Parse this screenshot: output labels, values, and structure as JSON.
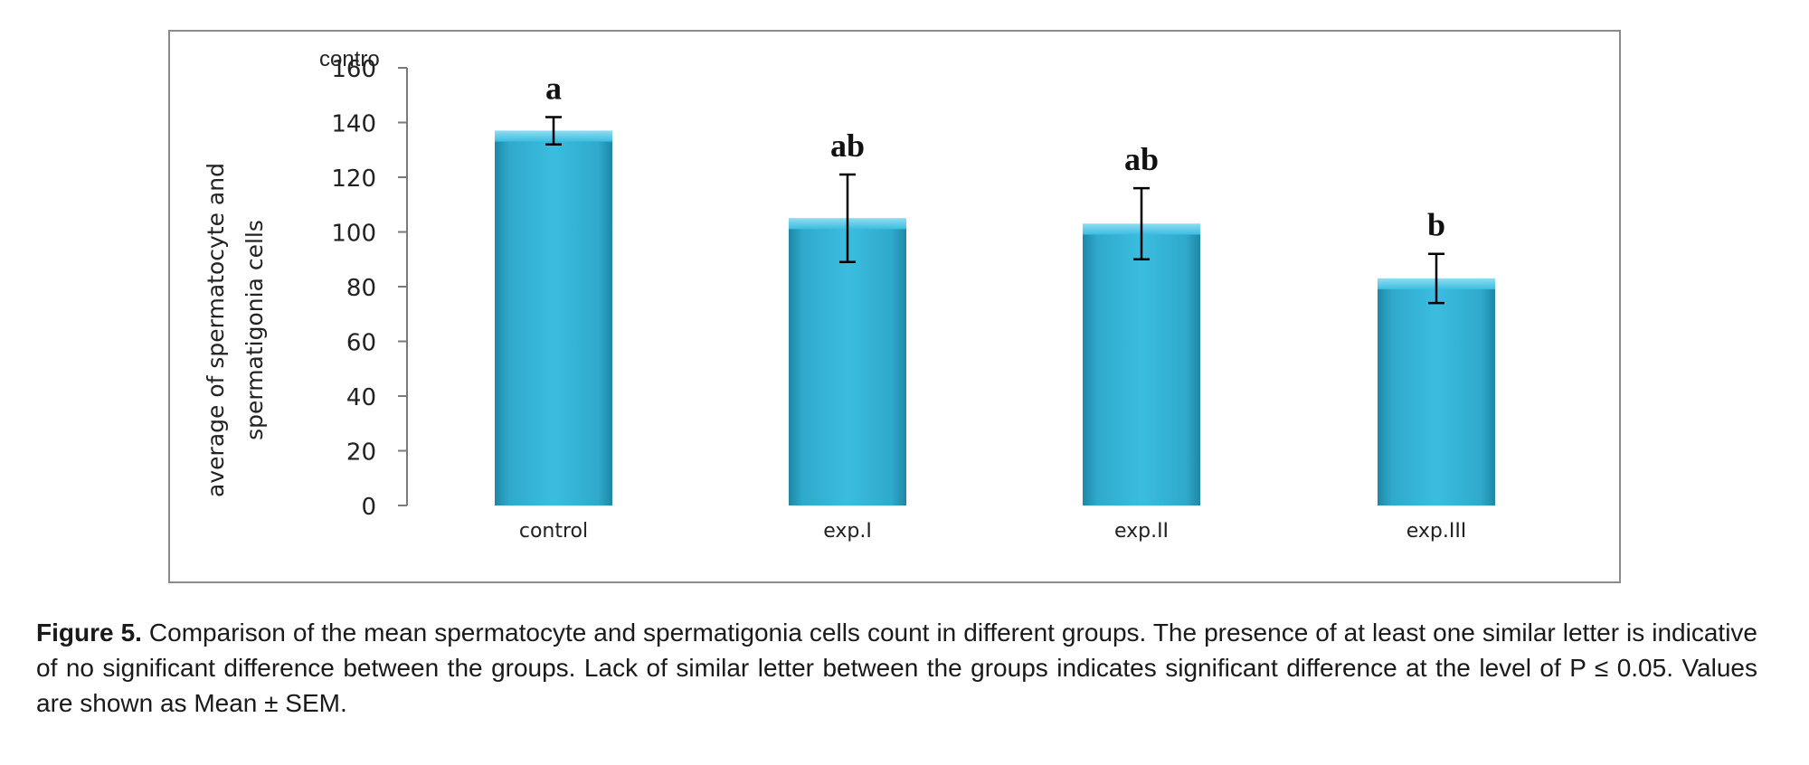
{
  "chart_data": {
    "type": "bar",
    "categories": [
      "control",
      "exp.I",
      "exp.II",
      "exp.III"
    ],
    "values": [
      137,
      105,
      103,
      83
    ],
    "errors": [
      5,
      16,
      13,
      9
    ],
    "significance_letters": [
      "a",
      "ab",
      "ab",
      "b"
    ],
    "ylabel": "average of spermatocyte  and\nspermatigonia cells",
    "ylim": [
      0,
      160
    ],
    "yticks": [
      0,
      20,
      40,
      60,
      80,
      100,
      120,
      140,
      160
    ],
    "stray_label": "contro",
    "bar_color": "#31b4d9",
    "bar_color_dark": "#1e87a6",
    "grid": false,
    "legend": "none"
  },
  "caption": {
    "label": "Figure 5.",
    "text": " Comparison of the mean spermatocyte and spermatigonia cells count in different groups. The presence of at least one similar letter is indicative of no significant difference between the groups. Lack of similar letter between the groups indicates significant difference at the level of P ≤ 0.05. Values are shown as Mean ± SEM."
  }
}
